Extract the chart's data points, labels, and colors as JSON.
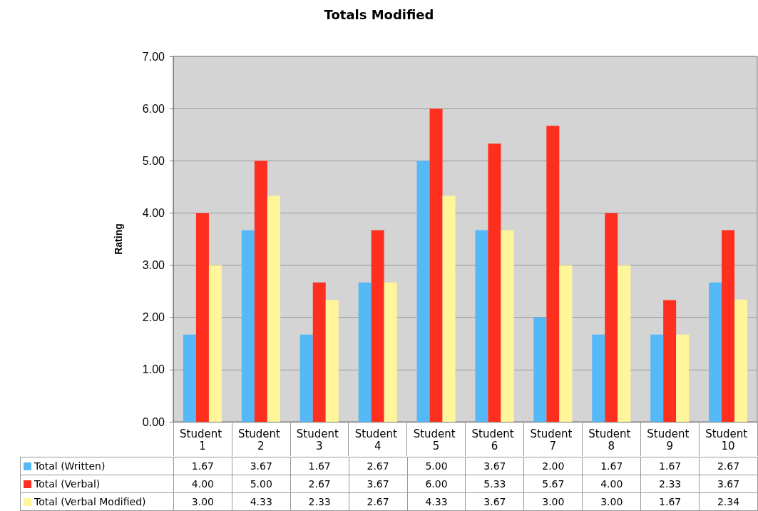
{
  "chart_data": {
    "type": "bar",
    "title": "Totals Modified",
    "ylabel": "Rating",
    "categories": [
      "Student 1",
      "Student 2",
      "Student 3",
      "Student 4",
      "Student 5",
      "Student 6",
      "Student 7",
      "Student 8",
      "Student 9",
      "Student 10"
    ],
    "series": [
      {
        "name": "Total (Written)",
        "color": "#55b8f7",
        "values": [
          1.67,
          3.67,
          1.67,
          2.67,
          5.0,
          3.67,
          2.0,
          1.67,
          1.67,
          2.67
        ],
        "value_labels": [
          "1.67",
          "3.67",
          "1.67",
          "2.67",
          "5.00",
          "3.67",
          "2.00",
          "1.67",
          "1.67",
          "2.67"
        ]
      },
      {
        "name": "Total (Verbal)",
        "color": "#ff2f1f",
        "values": [
          4.0,
          5.0,
          2.67,
          3.67,
          6.0,
          5.33,
          5.67,
          4.0,
          2.33,
          3.67
        ],
        "value_labels": [
          "4.00",
          "5.00",
          "2.67",
          "3.67",
          "6.00",
          "5.33",
          "5.67",
          "4.00",
          "2.33",
          "3.67"
        ]
      },
      {
        "name": "Total (Verbal Modified)",
        "color": "#fff59a",
        "values": [
          3.0,
          4.33,
          2.33,
          2.67,
          4.33,
          3.67,
          3.0,
          3.0,
          1.67,
          2.34
        ],
        "value_labels": [
          "3.00",
          "4.33",
          "2.33",
          "2.67",
          "4.33",
          "3.67",
          "3.00",
          "3.00",
          "1.67",
          "2.34"
        ]
      }
    ],
    "ylim": [
      0,
      7
    ],
    "yticks": [
      {
        "value": 0,
        "label": "0.00"
      },
      {
        "value": 1,
        "label": "1.00"
      },
      {
        "value": 2,
        "label": "2.00"
      },
      {
        "value": 3,
        "label": "3.00"
      },
      {
        "value": 4,
        "label": "4.00"
      },
      {
        "value": 5,
        "label": "5.00"
      },
      {
        "value": 6,
        "label": "6.00"
      },
      {
        "value": 7,
        "label": "7.00"
      }
    ],
    "grid": "y",
    "legend": "bottom left"
  }
}
